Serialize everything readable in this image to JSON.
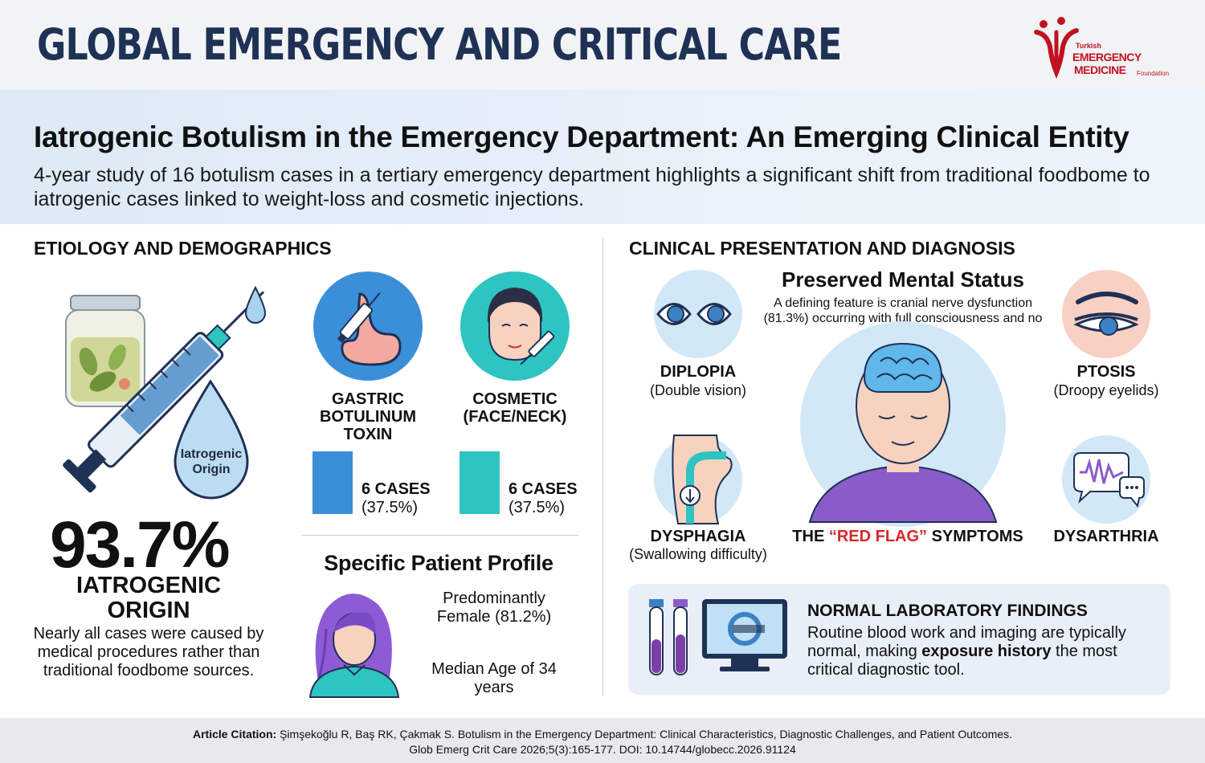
{
  "header": {
    "journal_title": "GLOBAL EMERGENCY AND CRITICAL CARE",
    "logo_small": "Turkish",
    "logo_line1": "EMERGENCY",
    "logo_line2": "MEDICINE",
    "logo_foundation": "Foundation"
  },
  "headline": "Iatrogenic Botulism in the Emergency Department: An Emerging Clinical Entity",
  "subheadline": "4-year study of 16 botulism cases in a tertiary emergency department highlights a significant shift from traditional foodbome to iatrogenic cases linked to weight-loss and cosmetic injections.",
  "left": {
    "section_title": "ETIOLOGY AND DEMOGRAPHICS",
    "drop_label": "Iatrogenic Origin",
    "big_stat": "93.7%",
    "stat_label": "IATROGENIC ORIGIN",
    "stat_desc": "Nearly all cases were caused by medical procedures rather than traditional foodbome sources.",
    "categories": [
      {
        "label": "GASTRIC BOTULINUM TOXIN",
        "cases": "6 CASES",
        "pct": "(37.5%)",
        "color": "#3b8fd9"
      },
      {
        "label": "COSMETIC (FACE/NECK)",
        "cases": "6 CASES",
        "pct": "(37.5%)",
        "color": "#2ec4c1"
      }
    ],
    "profile": {
      "title": "Specific Patient Profile",
      "female": "Predominantly Female (81.2%)",
      "age": "Median Age of 34 years"
    }
  },
  "right": {
    "section_title": "CLINICAL PRESENTATION AND DIAGNOSIS",
    "pms_title": "Preserved Mental Status",
    "pms_text": "A defining feature is cranial nerve dysfunction (81.3%) occurring with full consciousness and no fever.",
    "symptoms": [
      {
        "name": "DIPLOPIA",
        "desc": "(Double vision)",
        "icon": "eyes-icon"
      },
      {
        "name": "PTOSIS",
        "desc": "(Droopy eyelids)",
        "icon": "droopy-eye-icon"
      },
      {
        "name": "DYSPHAGIA",
        "desc": "(Swallowing difficulty)",
        "icon": "throat-icon"
      },
      {
        "name": "DYSARTHRIA",
        "desc": "",
        "icon": "speech-icon"
      }
    ],
    "red_flag_pre": "THE ",
    "red_flag_mid": "“RED FLAG”",
    "red_flag_post": " SYMPTOMS",
    "lab_title": "NORMAL LABORATORY FINDINGS",
    "lab_text_1": "Routine blood work and imaging are typically normal, making ",
    "lab_text_bold": "exposure history",
    "lab_text_2": " the most critical diagnostic tool."
  },
  "citation": {
    "label": "Article Citation:",
    "line1": " Şimşekoğlu R, Baş RK, Çakmak S. Botulism in the Emergency Department: Clinical Characteristics, Diagnostic Challenges, and Patient Outcomes.",
    "line2": "Glob Emerg Crit Care 2026;5(3):165-177. DOI: 10.14744/globecc.2026.91124"
  },
  "colors": {
    "navy": "#1f3155",
    "red": "#d62828",
    "blue_bar": "#3b8fd9",
    "teal_bar": "#2ec4c1",
    "purple": "#8b5cc9"
  }
}
